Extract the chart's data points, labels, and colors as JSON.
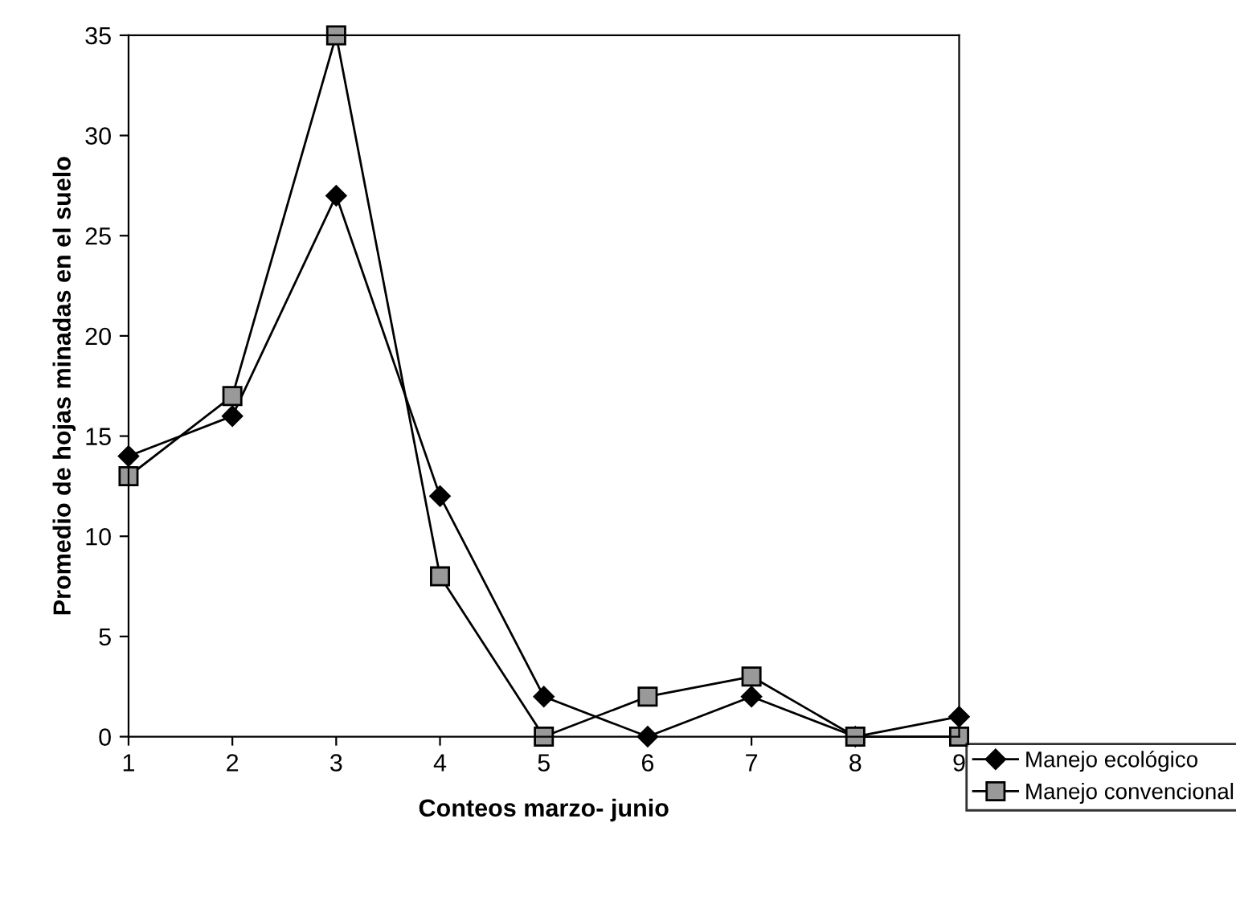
{
  "chart_data": {
    "type": "line",
    "xlabel": "Conteos marzo- junio",
    "ylabel": "Promedio de hojas minadas en el suelo",
    "x": [
      1,
      2,
      3,
      4,
      5,
      6,
      7,
      8,
      9
    ],
    "series": [
      {
        "name": "Manejo ecológico",
        "color": "#000000",
        "marker": "diamond",
        "values": [
          14,
          16,
          27,
          12,
          2,
          0,
          2,
          0,
          1
        ]
      },
      {
        "name": "Manejo convencional",
        "color": "#000000",
        "marker": "square",
        "values": [
          13,
          17,
          35,
          8,
          0,
          2,
          3,
          0,
          0
        ]
      }
    ],
    "xlim": [
      1,
      9
    ],
    "xticks": [
      1,
      2,
      3,
      4,
      5,
      6,
      7,
      8,
      9
    ],
    "ylim": [
      0,
      35
    ],
    "yticks": [
      0,
      5,
      10,
      15,
      20,
      25,
      30,
      35
    ],
    "grid": false,
    "legend": "bottom right",
    "line_style": "solid"
  }
}
